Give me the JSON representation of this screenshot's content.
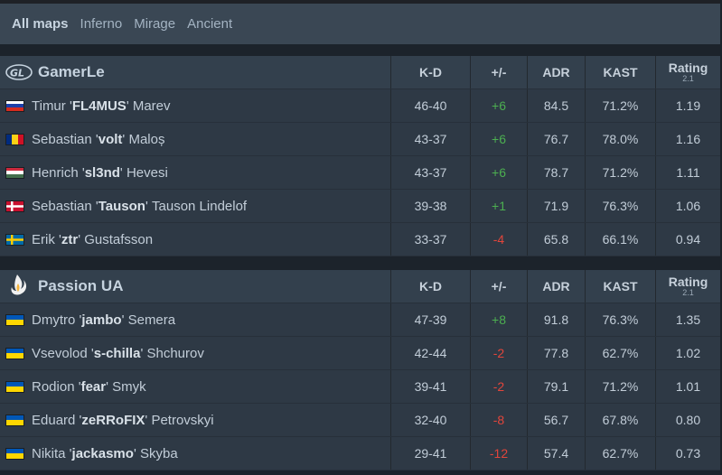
{
  "tabs": [
    "All maps",
    "Inferno",
    "Mirage",
    "Ancient"
  ],
  "columns": {
    "kd": "K-D",
    "pm": "+/-",
    "adr": "ADR",
    "kast": "KAST",
    "rating": "Rating",
    "rating_sub": "2.1"
  },
  "teams": [
    {
      "name": "GamerLe",
      "players": [
        {
          "first": "Timur",
          "nick": "FL4MUS",
          "last": "Marev",
          "flag": "russia",
          "kd": "46-40",
          "pm": "+6",
          "adr": "84.5",
          "kast": "71.2%",
          "rating": "1.19"
        },
        {
          "first": "Sebastian",
          "nick": "volt",
          "last": "Maloș",
          "flag": "romania",
          "kd": "43-37",
          "pm": "+6",
          "adr": "76.7",
          "kast": "78.0%",
          "rating": "1.16"
        },
        {
          "first": "Henrich",
          "nick": "sl3nd",
          "last": "Hevesi",
          "flag": "hungary",
          "kd": "43-37",
          "pm": "+6",
          "adr": "78.7",
          "kast": "71.2%",
          "rating": "1.11"
        },
        {
          "first": "Sebastian",
          "nick": "Tauson",
          "last": "Tauson Lindelof",
          "flag": "denmark",
          "kd": "39-38",
          "pm": "+1",
          "adr": "71.9",
          "kast": "76.3%",
          "rating": "1.06"
        },
        {
          "first": "Erik",
          "nick": "ztr",
          "last": "Gustafsson",
          "flag": "sweden",
          "kd": "33-37",
          "pm": "-4",
          "adr": "65.8",
          "kast": "66.1%",
          "rating": "0.94"
        }
      ]
    },
    {
      "name": "Passion UA",
      "players": [
        {
          "first": "Dmytro",
          "nick": "jambo",
          "last": "Semera",
          "flag": "ukraine",
          "kd": "47-39",
          "pm": "+8",
          "adr": "91.8",
          "kast": "76.3%",
          "rating": "1.35"
        },
        {
          "first": "Vsevolod",
          "nick": "s-chilla",
          "last": "Shchurov",
          "flag": "ukraine",
          "kd": "42-44",
          "pm": "-2",
          "adr": "77.8",
          "kast": "62.7%",
          "rating": "1.02"
        },
        {
          "first": "Rodion",
          "nick": "fear",
          "last": "Smyk",
          "flag": "ukraine",
          "kd": "39-41",
          "pm": "-2",
          "adr": "79.1",
          "kast": "71.2%",
          "rating": "1.01"
        },
        {
          "first": "Eduard",
          "nick": "zeRRoFIX",
          "last": "Petrovskyi",
          "flag": "ukraine",
          "kd": "32-40",
          "pm": "-8",
          "adr": "56.7",
          "kast": "67.8%",
          "rating": "0.80"
        },
        {
          "first": "Nikita",
          "nick": "jackasmo",
          "last": "Skyba",
          "flag": "ukraine",
          "kd": "29-41",
          "pm": "-12",
          "adr": "57.4",
          "kast": "62.7%",
          "rating": "0.73"
        }
      ]
    }
  ],
  "colors": {
    "positive": "#4caf50",
    "negative": "#e2453b",
    "header_bg": "#33404d",
    "row_bg": "#2e3945",
    "tabs_bg": "#3a4754"
  }
}
